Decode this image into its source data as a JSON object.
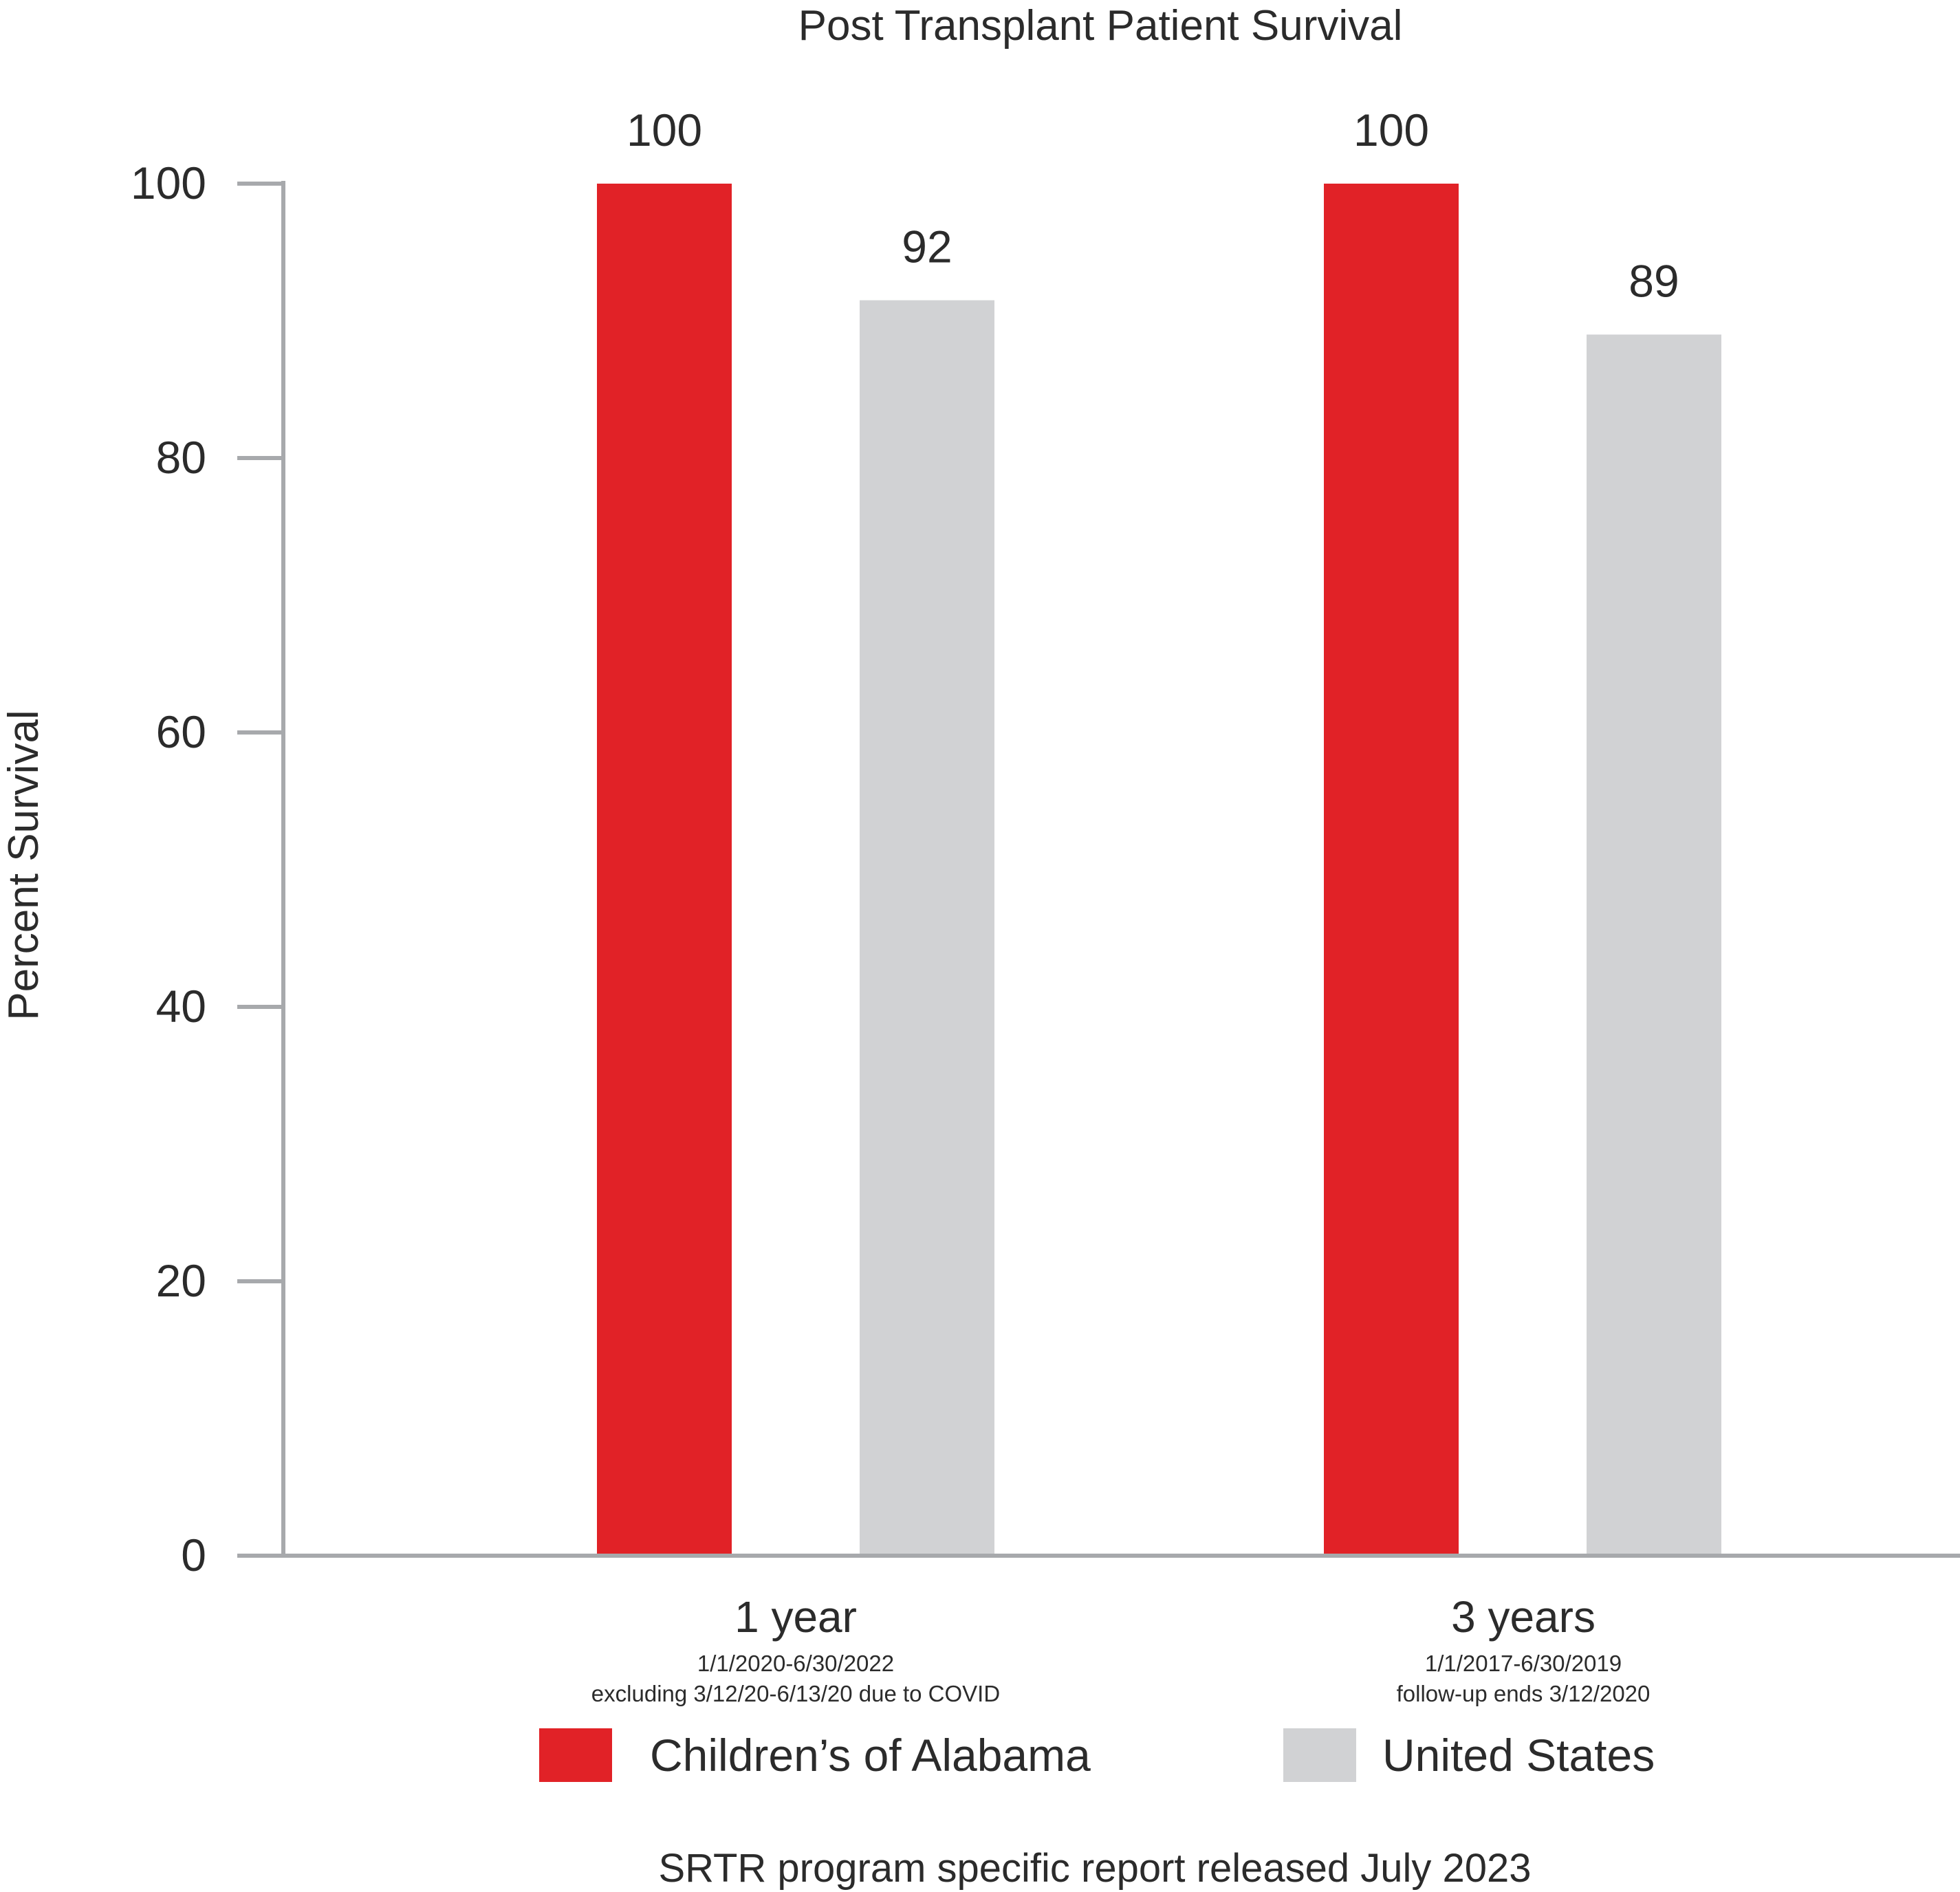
{
  "chart_data": {
    "type": "bar",
    "title": "Post Transplant Patient Survival",
    "ylabel": "Percent Survival",
    "xlabel": "",
    "ylim": [
      0,
      100
    ],
    "yticks": [
      "0",
      "20",
      "40",
      "60",
      "80",
      "100"
    ],
    "categories": [
      "1 year",
      "3 years"
    ],
    "category_subtitles": [
      [
        "1/1/2020-6/30/2022",
        "excluding 3/12/20-6/13/20 due to COVID"
      ],
      [
        "1/1/2017-6/30/2019",
        "follow-up ends 3/12/2020"
      ]
    ],
    "series": [
      {
        "name": "Children’s of Alabama",
        "values": [
          100,
          100
        ],
        "labels": [
          "100",
          "100"
        ],
        "color": "#e12227"
      },
      {
        "name": "United States",
        "values": [
          91.5,
          89
        ],
        "labels": [
          "92",
          "89"
        ],
        "color": "#d1d2d4"
      }
    ],
    "grid": false,
    "legend_position": "bottom",
    "axis_color": "#a7a9ac",
    "footnote": "SRTR program specific report released July 2023"
  }
}
